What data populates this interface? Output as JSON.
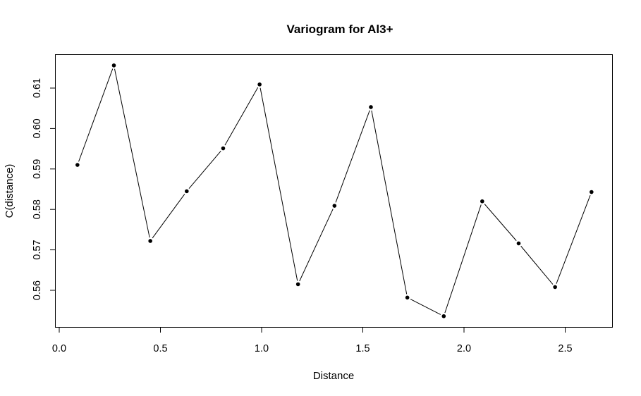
{
  "chart_data": {
    "type": "line",
    "title": "Variogram for Al3+",
    "xlabel": "Distance",
    "ylabel": "C(distance)",
    "xlim": [
      0.0,
      2.65
    ],
    "ylim": [
      0.552,
      0.617
    ],
    "x_ticks": [
      0.0,
      0.5,
      1.0,
      1.5,
      2.0,
      2.5
    ],
    "x_tick_labels": [
      "0.0",
      "0.5",
      "1.0",
      "1.5",
      "2.0",
      "2.5"
    ],
    "y_ticks": [
      0.56,
      0.57,
      0.58,
      0.59,
      0.6,
      0.61
    ],
    "y_tick_labels": [
      "0.56",
      "0.57",
      "0.58",
      "0.59",
      "0.60",
      "0.61"
    ],
    "grid": false,
    "legend": "none",
    "series": [
      {
        "x": [
          0.09,
          0.27,
          0.45,
          0.63,
          0.81,
          0.99,
          1.18,
          1.36,
          1.54,
          1.72,
          1.9,
          2.09,
          2.27,
          2.45,
          2.63
        ],
        "y": [
          0.591,
          0.6156,
          0.5722,
          0.5845,
          0.5951,
          0.6109,
          0.5615,
          0.5809,
          0.6053,
          0.5582,
          0.5536,
          0.582,
          0.5716,
          0.5608,
          0.5843
        ]
      }
    ]
  }
}
